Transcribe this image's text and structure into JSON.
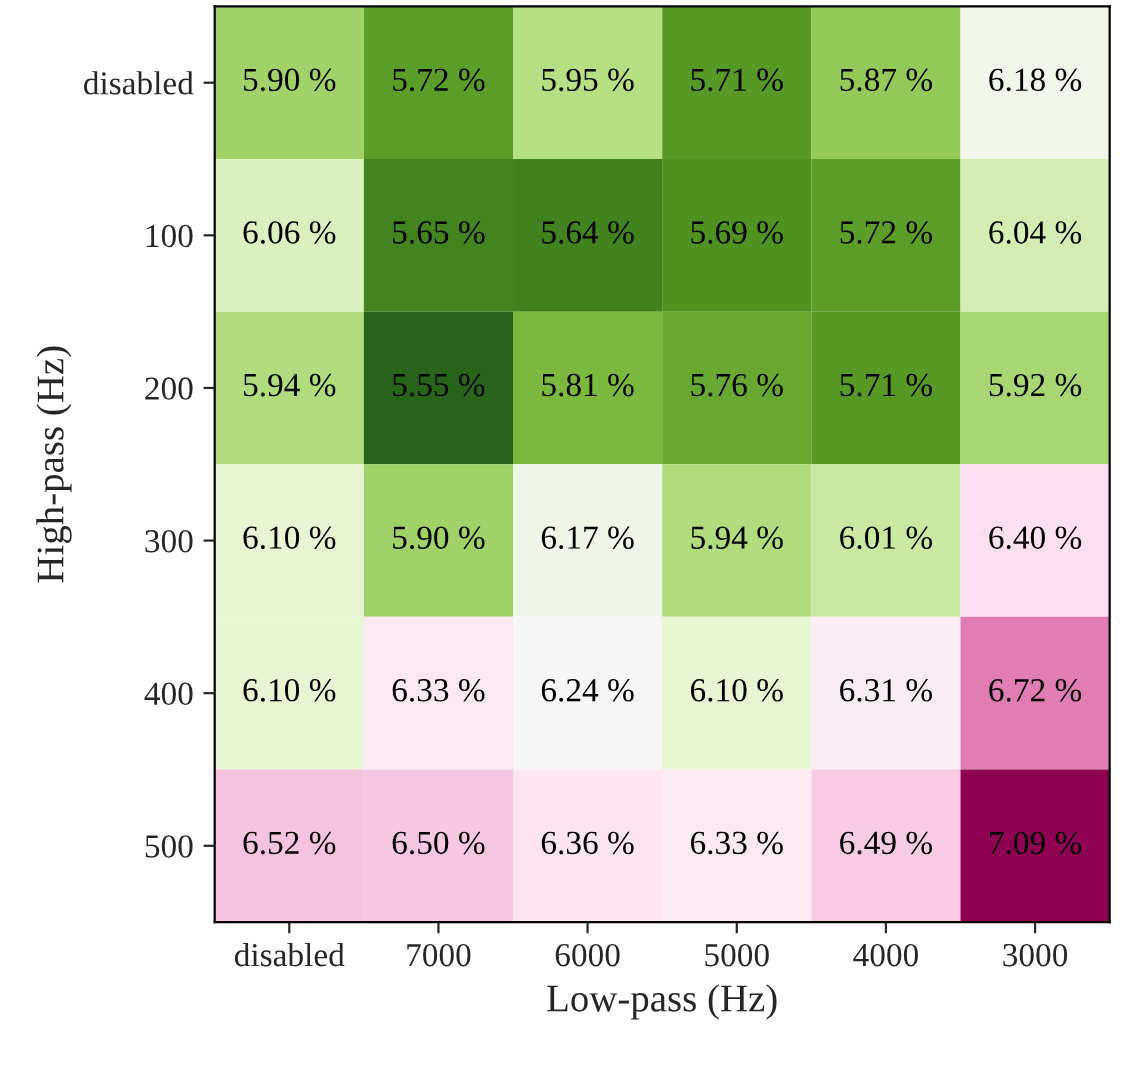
{
  "chart_data": {
    "type": "heatmap",
    "xlabel": "Low-pass (Hz)",
    "ylabel": "High-pass (Hz)",
    "categories": [
      "disabled",
      "7000",
      "6000",
      "5000",
      "4000",
      "3000"
    ],
    "y_categories": [
      "disabled",
      "100",
      "200",
      "300",
      "400",
      "500"
    ],
    "cells": [
      [
        5.9,
        5.72,
        5.95,
        5.71,
        5.87,
        6.18
      ],
      [
        6.06,
        5.65,
        5.64,
        5.69,
        5.72,
        6.04
      ],
      [
        5.94,
        5.55,
        5.81,
        5.76,
        5.71,
        5.92
      ],
      [
        6.1,
        5.9,
        6.17,
        5.94,
        6.01,
        6.4
      ],
      [
        6.1,
        6.33,
        6.24,
        6.1,
        6.31,
        6.72
      ],
      [
        6.52,
        6.5,
        6.36,
        6.33,
        6.49,
        7.09
      ]
    ],
    "cell_labels": [
      [
        "5.90 %",
        "5.72 %",
        "5.95 %",
        "5.71 %",
        "5.87 %",
        "6.18 %"
      ],
      [
        "6.06 %",
        "5.65 %",
        "5.64 %",
        "5.69 %",
        "5.72 %",
        "6.04 %"
      ],
      [
        "5.94 %",
        "5.55 %",
        "5.81 %",
        "5.76 %",
        "5.71 %",
        "5.92 %"
      ],
      [
        "6.10 %",
        "5.90 %",
        "6.17 %",
        "5.94 %",
        "6.01 %",
        "6.40 %"
      ],
      [
        "6.10 %",
        "6.33 %",
        "6.24 %",
        "6.10 %",
        "6.31 %",
        "6.72 %"
      ],
      [
        "6.52 %",
        "6.50 %",
        "6.36 %",
        "6.33 %",
        "6.49 %",
        "7.09 %"
      ]
    ]
  }
}
